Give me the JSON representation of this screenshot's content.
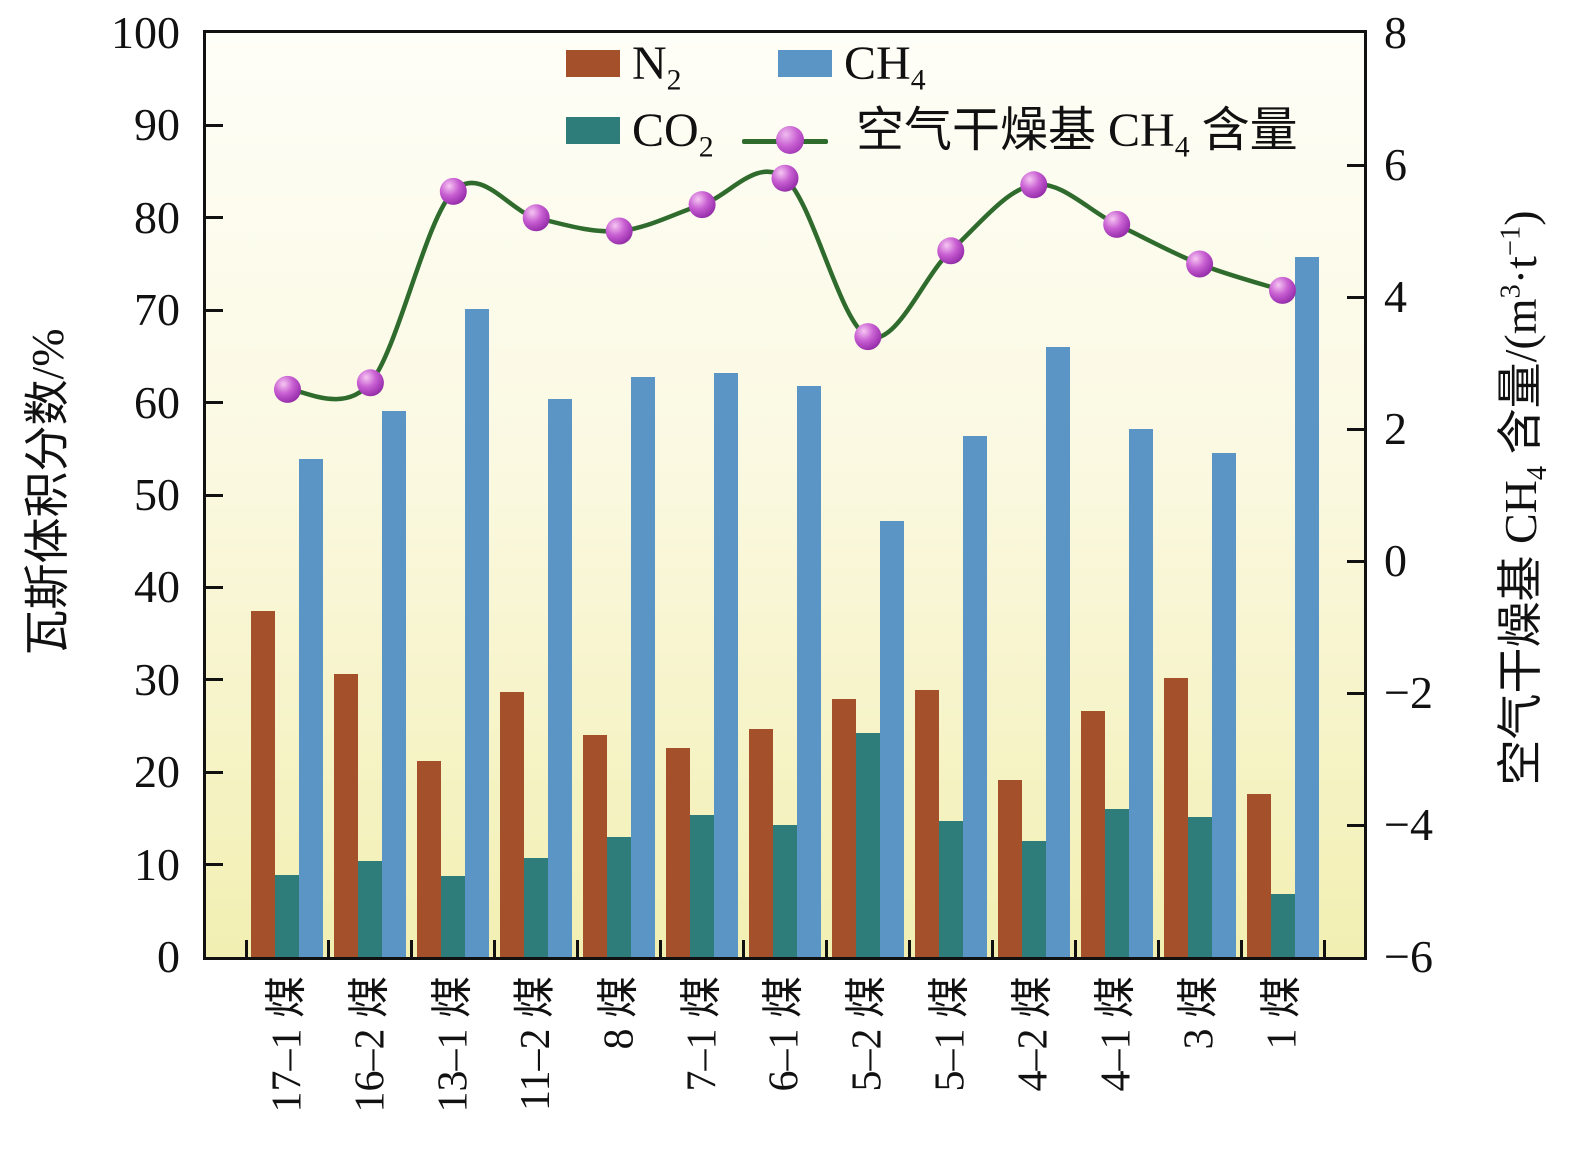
{
  "figure": {
    "colors": {
      "n2": "#A4512B",
      "ch4": "#5A95C5",
      "co2": "#2F7D7A",
      "line": "#2E6B2D",
      "marker_dark": "#87279B",
      "marker_mid": "#A93FB5",
      "marker_light": "#F0BCEE",
      "axis": "#111111",
      "bg_top": "#FEFEF8",
      "bg_bottom": "#F2EFB2"
    }
  },
  "left_axis": {
    "title": "瓦斯体积分数/%",
    "min": 0,
    "max": 100,
    "ticks": [
      {
        "v": 0,
        "l": "0"
      },
      {
        "v": 10,
        "l": "10"
      },
      {
        "v": 20,
        "l": "20"
      },
      {
        "v": 30,
        "l": "30"
      },
      {
        "v": 40,
        "l": "40"
      },
      {
        "v": 50,
        "l": "50"
      },
      {
        "v": 60,
        "l": "60"
      },
      {
        "v": 70,
        "l": "70"
      },
      {
        "v": 80,
        "l": "80"
      },
      {
        "v": 90,
        "l": "90"
      },
      {
        "v": 100,
        "l": "100"
      }
    ]
  },
  "right_axis": {
    "title_segments": [
      {
        "t": "空气干燥基 CH"
      },
      {
        "t": "4",
        "s": "sub"
      },
      {
        "t": " 含量/(m"
      },
      {
        "t": "3",
        "s": "sup"
      },
      {
        "t": "·t"
      },
      {
        "t": "−1",
        "s": "sup"
      },
      {
        "t": ")"
      }
    ],
    "min": -6,
    "max": 8,
    "ticks": [
      {
        "v": -6,
        "l": "−6"
      },
      {
        "v": -4,
        "l": "−4"
      },
      {
        "v": -2,
        "l": "−2"
      },
      {
        "v": 0,
        "l": "0"
      },
      {
        "v": 2,
        "l": "2"
      },
      {
        "v": 4,
        "l": "4"
      },
      {
        "v": 6,
        "l": "6"
      },
      {
        "v": 8,
        "l": "8"
      }
    ]
  },
  "legend": {
    "position": "top-center-inside",
    "items": [
      {
        "key": "n2",
        "segments": [
          {
            "t": "N"
          },
          {
            "t": "2",
            "s": "sub"
          }
        ]
      },
      {
        "key": "ch4",
        "segments": [
          {
            "t": "CH"
          },
          {
            "t": "4",
            "s": "sub"
          }
        ]
      },
      {
        "key": "co2",
        "segments": [
          {
            "t": "CO"
          },
          {
            "t": "2",
            "s": "sub"
          }
        ]
      },
      {
        "key": "line",
        "segments": [
          {
            "t": "空气干燥基 CH"
          },
          {
            "t": "4",
            "s": "sub"
          },
          {
            "t": " 含量"
          }
        ]
      }
    ]
  },
  "chart_data": {
    "type": "bar+line",
    "grid": false,
    "categories": [
      "17–1 煤",
      "16–2 煤",
      "13–1 煤",
      "11–2 煤",
      "8 煤",
      "7–1 煤",
      "6–1 煤",
      "5–2 煤",
      "5–1 煤",
      "4–2 煤",
      "4–1 煤",
      "3 煤",
      "1 煤"
    ],
    "xlabel": "",
    "ylabel_left": "瓦斯体积分数/%",
    "ylabel_right": "空气干燥基 CH4 含量/(m3·t−1)",
    "ylim_left": [
      0,
      100
    ],
    "ylim_right": [
      -6,
      8
    ],
    "series": [
      {
        "name": "N2",
        "type": "bar",
        "axis": "left",
        "color_key": "n2",
        "values": [
          37.5,
          30.6,
          21.2,
          28.7,
          24.0,
          22.6,
          24.7,
          27.9,
          28.9,
          19.2,
          26.6,
          30.2,
          17.7
        ]
      },
      {
        "name": "CO2",
        "type": "bar",
        "axis": "left",
        "color_key": "co2",
        "values": [
          8.9,
          10.4,
          8.8,
          10.7,
          13.0,
          15.4,
          14.3,
          24.2,
          14.7,
          12.6,
          16.0,
          15.2,
          6.8
        ]
      },
      {
        "name": "CH4",
        "type": "bar",
        "axis": "left",
        "color_key": "ch4",
        "values": [
          53.9,
          59.1,
          70.1,
          60.4,
          62.8,
          63.2,
          61.8,
          47.2,
          56.4,
          66.0,
          57.2,
          54.6,
          75.8
        ]
      },
      {
        "name": "空气干燥基 CH4 含量",
        "type": "line",
        "axis": "right",
        "color_key": "line",
        "values": [
          2.6,
          2.7,
          5.6,
          5.2,
          5.0,
          5.4,
          5.8,
          3.4,
          4.7,
          5.7,
          5.1,
          4.5,
          4.1
        ]
      }
    ]
  }
}
